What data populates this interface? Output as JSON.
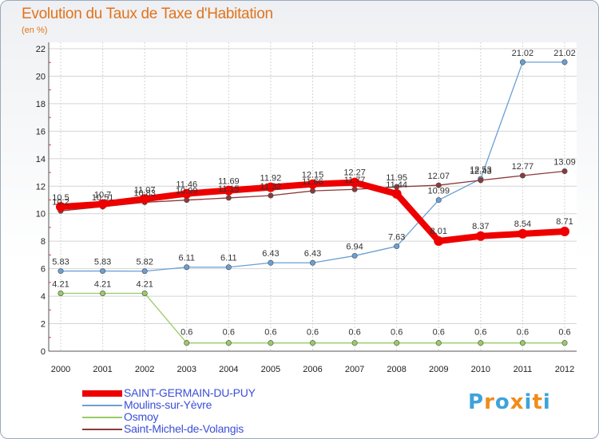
{
  "title": "Evolution du Taux de Taxe d'Habitation",
  "unit": "(en %)",
  "logo": {
    "chars": [
      "P",
      "r",
      "o",
      "x",
      "i",
      "t",
      "i"
    ],
    "colors": [
      "#3ea3db",
      "#f08c1a",
      "#3ea3db",
      "#f08c1a",
      "#3ea3db",
      "#f08c1a",
      "#3ea3db"
    ]
  },
  "chart_data": {
    "type": "line",
    "title": "Evolution du Taux de Taxe d'Habitation",
    "ylabel": "(en %)",
    "xlabel": "",
    "x": [
      "2000",
      "2001",
      "2002",
      "2003",
      "2004",
      "2005",
      "2006",
      "2007",
      "2008",
      "2009",
      "2010",
      "2011",
      "2012"
    ],
    "ylim": [
      0,
      22
    ],
    "yticks": [
      0,
      2,
      4,
      6,
      8,
      10,
      12,
      14,
      16,
      18,
      20,
      22
    ],
    "grid": true,
    "legend_position": "bottom-left",
    "series": [
      {
        "name": "SAINT-GERMAIN-DU-PUY",
        "color": "#ee0000",
        "values": [
          10.5,
          10.7,
          11.07,
          11.46,
          11.69,
          11.92,
          12.15,
          12.27,
          11.44,
          8.01,
          8.37,
          8.54,
          8.71
        ],
        "labels": [
          "10.5",
          "10.7",
          "11.07",
          "11.46",
          "11.69",
          "11.92",
          "12.15",
          "12.27",
          "11.44",
          "8.01",
          "8.37",
          "8.54",
          "8.71"
        ]
      },
      {
        "name": "Moulins-sur-Yèvre",
        "color": "#6aa0d4",
        "values": [
          5.83,
          5.83,
          5.82,
          6.11,
          6.11,
          6.43,
          6.43,
          6.94,
          7.63,
          10.99,
          12.53,
          21.02,
          21.02
        ],
        "labels": [
          "5.83",
          "5.83",
          "5.82",
          "6.11",
          "6.11",
          "6.43",
          "6.43",
          "6.94",
          "7.63",
          "10.99",
          "12.53",
          "21.02",
          "21.02"
        ]
      },
      {
        "name": "Osmoy",
        "color": "#99cc66",
        "values": [
          4.21,
          4.21,
          4.21,
          0.6,
          0.6,
          0.6,
          0.6,
          0.6,
          0.6,
          0.6,
          0.6,
          0.6,
          0.6
        ],
        "labels": [
          "4.21",
          "4.21",
          "4.21",
          "0.6",
          "0.6",
          "0.6",
          "0.6",
          "0.6",
          "0.6",
          "0.6",
          "0.6",
          "0.6",
          "0.6"
        ]
      },
      {
        "name": "Saint-Michel-de-Volangis",
        "color": "#8b3a3a",
        "values": [
          10.2,
          10.51,
          10.83,
          10.99,
          11.15,
          11.32,
          11.66,
          11.77,
          11.95,
          12.07,
          12.43,
          12.77,
          13.09
        ],
        "labels": [
          "10.2",
          "10.51",
          "10.83",
          "10.99",
          "11.15",
          "11.32",
          "11.66",
          "11.77",
          "11.95",
          "12.07",
          "12.43",
          "12.77",
          "13.09"
        ]
      }
    ]
  }
}
